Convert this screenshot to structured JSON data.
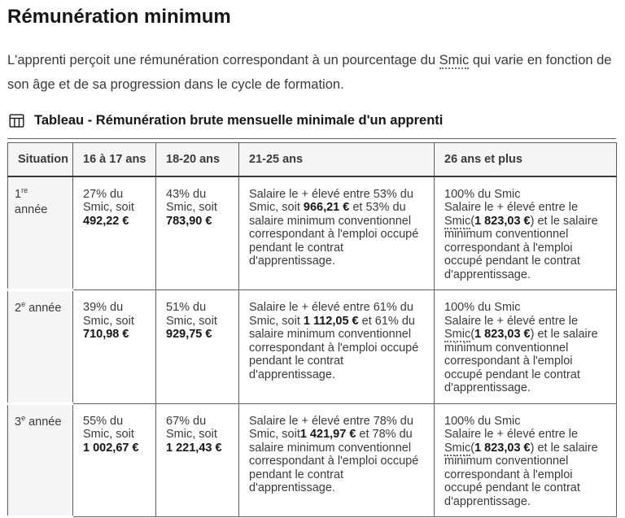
{
  "title": "Rémunération minimum",
  "intro": {
    "segments": [
      {
        "t": "L'apprenti perçoit une rémunération correspondant à un pourcentage du "
      },
      {
        "t": "Smic",
        "u": true
      },
      {
        "t": " qui varie en fonction de son âge et de sa progression dans le cycle de formation."
      }
    ]
  },
  "colors": {
    "text": "#3a3a3a",
    "heading": "#161616",
    "table_border": "#5f5f5f",
    "header_background": "#f5f5f5"
  },
  "table": {
    "icon": "table-grid-icon",
    "caption": "Tableau - Rémunération brute mensuelle minimale d'un apprenti",
    "headers": [
      "Situation",
      "16 à 17 ans",
      "18-20 ans",
      "21-25 ans",
      "26 ans et plus"
    ],
    "rows": [
      {
        "year": {
          "num": "1",
          "sup": "re",
          "rest": "année"
        },
        "cells": [
          [
            {
              "t": "27% du Smic, soit "
            },
            {
              "t": "492,22 €",
              "b": true
            }
          ],
          [
            {
              "t": "43% du Smic, soit "
            },
            {
              "t": "783,90 €",
              "b": true
            }
          ],
          [
            {
              "t": "Salaire le + élevé entre 53% du Smic, soit "
            },
            {
              "t": "966,21 €",
              "b": true
            },
            {
              "t": " et 53% du salaire minimum conventionnel correspondant à l'emploi occupé pendant le contrat d'apprentissage."
            }
          ],
          [
            {
              "t": "100% du Smic"
            },
            {
              "br": true
            },
            {
              "t": "Salaire le + élevé entre le "
            },
            {
              "t": "Smic",
              "u": true
            },
            {
              "t": "("
            },
            {
              "t": "1 823,03 €",
              "b": true
            },
            {
              "t": ") et le salaire minimum conventionnel correspondant à l'emploi occupé pendant le contrat d'apprentissage."
            }
          ]
        ]
      },
      {
        "year": {
          "num": "2",
          "sup": "e",
          "rest": "année"
        },
        "cells": [
          [
            {
              "t": "39% du Smic, soit "
            },
            {
              "t": "710,98 €",
              "b": true
            }
          ],
          [
            {
              "t": "51% du Smic, soit "
            },
            {
              "t": "929,75 €",
              "b": true
            }
          ],
          [
            {
              "t": "Salaire le + élevé entre 61% du Smic, soit "
            },
            {
              "t": "1 112,05 €",
              "b": true
            },
            {
              "t": " et 61% du salaire minimum conventionnel correspondant à l'emploi occupé pendant le contrat d'apprentissage."
            }
          ],
          [
            {
              "t": "100% du Smic"
            },
            {
              "br": true
            },
            {
              "t": "Salaire le + élevé entre le "
            },
            {
              "t": "Smic",
              "u": true
            },
            {
              "t": "("
            },
            {
              "t": "1 823,03 €",
              "b": true
            },
            {
              "t": ") et le salaire minimum conventionnel correspondant à l'emploi occupé pendant le contrat d'apprentissage."
            }
          ]
        ]
      },
      {
        "year": {
          "num": "3",
          "sup": "e",
          "rest": "année"
        },
        "cells": [
          [
            {
              "t": "55% du Smic, soit "
            },
            {
              "t": "1 002,67 €",
              "b": true
            }
          ],
          [
            {
              "t": "67% du Smic, soit "
            },
            {
              "t": "1 221,43 €",
              "b": true
            }
          ],
          [
            {
              "t": "Salaire le + élevé entre 78% du Smic, soit"
            },
            {
              "t": "1 421,97 €",
              "b": true
            },
            {
              "t": " et 78% du salaire minimum conventionnel correspondant à l'emploi occupé pendant le contrat d'apprentissage."
            }
          ],
          [
            {
              "t": "100% du Smic"
            },
            {
              "br": true
            },
            {
              "t": "Salaire le + élevé entre le "
            },
            {
              "t": "Smic",
              "u": true
            },
            {
              "t": "("
            },
            {
              "t": "1 823,03 €",
              "b": true
            },
            {
              "t": ") et le salaire minimum conventionnel correspondant à l'emploi occupé pendant le contrat d'apprentissage."
            }
          ]
        ]
      }
    ]
  }
}
